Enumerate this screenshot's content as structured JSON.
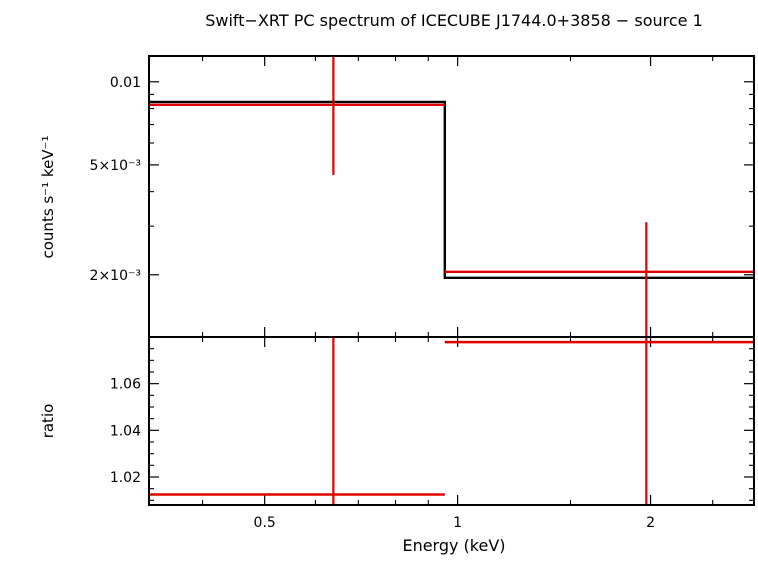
{
  "chart_data": {
    "type": "line",
    "title": "Swift−XRT PC spectrum of ICECUBE J1744.0+3858 − source 1",
    "xlabel": "Energy (keV)",
    "x_scale": "log",
    "xlim": [
      0.33,
      2.9
    ],
    "x_ticks": [
      {
        "value": 0.5,
        "label": "0.5"
      },
      {
        "value": 1,
        "label": "1"
      },
      {
        "value": 2,
        "label": "2"
      }
    ],
    "colors": {
      "data": "#e00000",
      "model": "#000000",
      "frame": "#000000"
    },
    "panels": [
      {
        "name": "spectrum",
        "ylabel": "counts s⁻¹ keV⁻¹",
        "y_scale": "log",
        "ylim": [
          0.00119,
          0.0124
        ],
        "y_ticks": [
          {
            "value": 0.01,
            "label": "0.01"
          },
          {
            "value": 0.005,
            "label": "5×10⁻³"
          },
          {
            "value": 0.002,
            "label": "2×10⁻³"
          }
        ],
        "data_points": [
          {
            "x_low": 0.33,
            "x_high": 0.955,
            "x": 0.64,
            "y": 0.00825,
            "y_low": 0.0046,
            "y_high": 0.0124
          },
          {
            "x_low": 0.955,
            "x_high": 2.9,
            "x": 1.97,
            "y": 0.00205,
            "y_low": 0.00119,
            "y_high": 0.0031
          }
        ],
        "model_step": [
          {
            "x_low": 0.33,
            "x_high": 0.955,
            "y": 0.00845
          },
          {
            "x_low": 0.955,
            "x_high": 2.9,
            "y": 0.00195
          }
        ]
      },
      {
        "name": "ratio",
        "ylabel": "ratio",
        "y_scale": "linear",
        "ylim": [
          1.008,
          1.08
        ],
        "y_ticks": [
          {
            "value": 1.02,
            "label": "1.02"
          },
          {
            "value": 1.04,
            "label": "1.04"
          },
          {
            "value": 1.06,
            "label": "1.06"
          }
        ],
        "data_points": [
          {
            "x_low": 0.33,
            "x_high": 0.955,
            "x": 0.64,
            "y": 1.0125,
            "y_low": 1.008,
            "y_high": 1.08
          },
          {
            "x_low": 0.955,
            "x_high": 2.9,
            "x": 1.97,
            "y": 1.0778,
            "y_low": 1.008,
            "y_high": 1.08
          }
        ]
      }
    ]
  }
}
